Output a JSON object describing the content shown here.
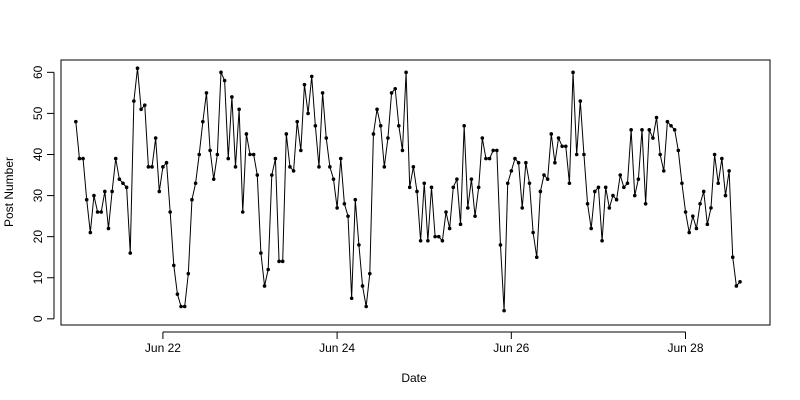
{
  "chart_data": {
    "type": "line",
    "xlabel": "Date",
    "ylabel": "Post Number",
    "x_ticks": [
      {
        "label": "Jun 22",
        "value": 22
      },
      {
        "label": "Jun 24",
        "value": 24
      },
      {
        "label": "Jun 26",
        "value": 26
      },
      {
        "label": "Jun 28",
        "value": 28
      }
    ],
    "y_ticks": [
      0,
      10,
      20,
      30,
      40,
      50,
      60
    ],
    "xlim": [
      "Jun 20.83",
      "Jun 28.97"
    ],
    "ylim": [
      -1.5,
      63
    ],
    "x_start": "Jun 21.0",
    "x_step_days": 0.04167,
    "markers": true,
    "values": [
      48,
      39,
      39,
      29,
      21,
      30,
      26,
      26,
      31,
      22,
      31,
      39,
      34,
      33,
      32,
      16,
      53,
      61,
      51,
      52,
      37,
      37,
      44,
      31,
      37,
      38,
      26,
      13,
      6,
      3,
      3,
      11,
      29,
      33,
      40,
      48,
      55,
      41,
      34,
      40,
      60,
      58,
      39,
      54,
      37,
      51,
      26,
      45,
      40,
      40,
      35,
      16,
      8,
      12,
      35,
      39,
      14,
      14,
      45,
      37,
      36,
      48,
      41,
      57,
      50,
      59,
      47,
      37,
      55,
      44,
      37,
      34,
      27,
      39,
      28,
      25,
      5,
      29,
      18,
      8,
      3,
      11,
      45,
      51,
      47,
      37,
      44,
      55,
      56,
      47,
      41,
      60,
      32,
      37,
      31,
      19,
      33,
      19,
      32,
      20,
      20,
      19,
      26,
      22,
      32,
      34,
      23,
      47,
      27,
      34,
      25,
      32,
      44,
      39,
      39,
      41,
      41,
      18,
      2,
      33,
      36,
      39,
      38,
      27,
      38,
      33,
      21,
      15,
      31,
      35,
      34,
      45,
      38,
      44,
      42,
      42,
      33,
      60,
      40,
      53,
      40,
      28,
      22,
      31,
      32,
      19,
      32,
      27,
      30,
      29,
      35,
      32,
      33,
      46,
      30,
      34,
      46,
      28,
      46,
      44,
      49,
      40,
      36,
      48,
      47,
      46,
      41,
      33,
      26,
      21,
      25,
      22,
      28,
      31,
      23,
      27,
      40,
      33,
      39,
      30,
      36,
      15,
      8,
      9
    ]
  }
}
